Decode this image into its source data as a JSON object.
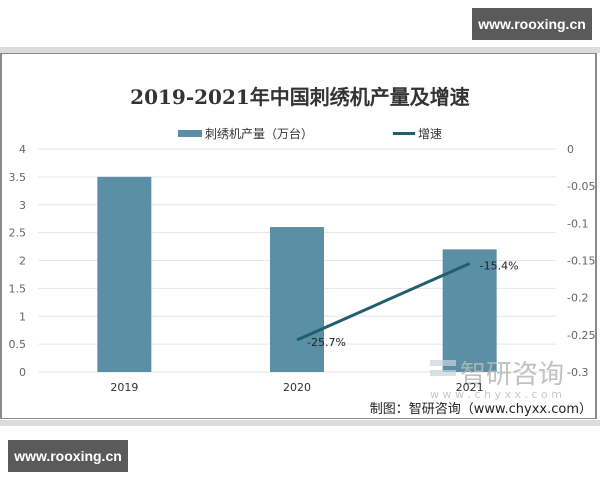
{
  "watermarks": {
    "top_badge": "www.rooxing.cn",
    "bottom_badge": "www.rooxing.cn",
    "chart_watermark": "智研咨询",
    "chart_watermark_url": "w w w . c h y x x . c o m"
  },
  "source": "制图：智研咨询（www.chyxx.com）",
  "colors": {
    "bar": "#5b8fa6",
    "line": "#1f5f6e",
    "grid": "#e6e6e6"
  },
  "chart_data": {
    "type": "bar",
    "title": "2019-2021年中国刺绣机产量及增速",
    "categories": [
      "2019",
      "2020",
      "2021"
    ],
    "series": [
      {
        "name": "刺绣机产量（万台）",
        "type": "bar",
        "axis": "left",
        "values": [
          3.5,
          2.6,
          2.2
        ]
      },
      {
        "name": "增速",
        "type": "line",
        "axis": "right",
        "values": [
          null,
          -0.257,
          -0.154
        ],
        "labels": [
          "",
          "-25.7%",
          "-15.4%"
        ]
      }
    ],
    "ylim": [
      0,
      4
    ],
    "y_ticks": [
      "4",
      "3.5",
      "3",
      "2.5",
      "2",
      "1.5",
      "1",
      "0.5",
      "0"
    ],
    "y2lim": [
      -0.3,
      0
    ],
    "y2_ticks": [
      "0",
      "-0.05",
      "-0.1",
      "-0.15",
      "-0.2",
      "-0.25",
      "-0.3"
    ],
    "legend_position": "top",
    "grid": true,
    "xlabel": "",
    "ylabel": ""
  }
}
